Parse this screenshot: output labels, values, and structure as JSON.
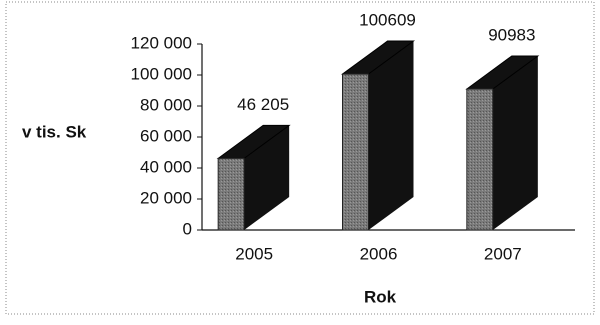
{
  "chart_data": {
    "type": "bar3d",
    "y_label": "v tis. Sk",
    "x_label": "Rok",
    "categories": [
      "2005",
      "2006",
      "2007"
    ],
    "values": [
      46205,
      100609,
      90983
    ],
    "value_labels": [
      "46 205",
      "100609",
      "90983"
    ],
    "color": "#6e6e6e",
    "side_color": "#111111",
    "ylim": [
      0,
      120000
    ],
    "yticks": [
      0,
      {
        "value": 20000,
        "label": "20 000"
      },
      {
        "value": 40000,
        "label": "40 000"
      },
      {
        "value": 60000,
        "label": "60 000"
      },
      {
        "value": 80000,
        "label": "80 000"
      },
      {
        "value": 100000,
        "label": "100 000"
      },
      {
        "value": 120000,
        "label": "120 000"
      }
    ]
  }
}
